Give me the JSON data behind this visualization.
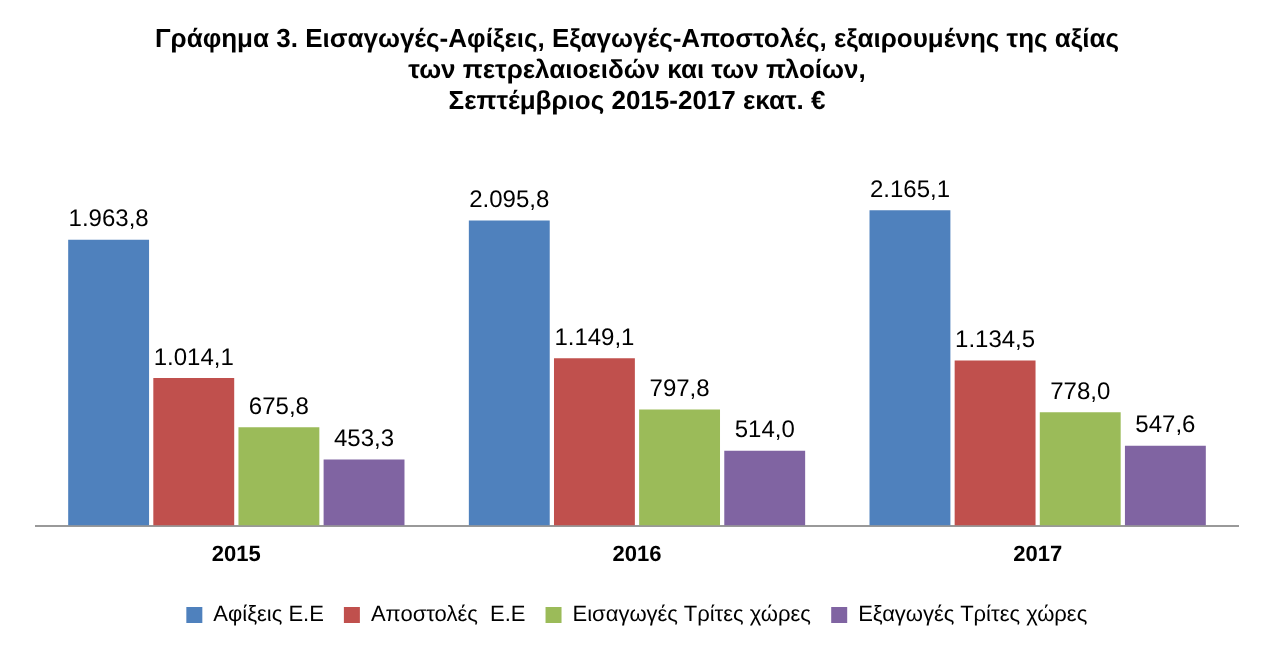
{
  "chart_data": {
    "type": "bar",
    "title": "Γράφημα 3. Εισαγωγές-Αφίξεις, Εξαγωγές-Αποστολές, εξαιρουμένης της αξίας\nτων πετρελαιοειδών και των πλοίων,\nΣεπτέμβριος 2015-2017 εκατ. €",
    "categories": [
      "2015",
      "2016",
      "2017"
    ],
    "series": [
      {
        "name": "Αφίξεις Ε.Ε",
        "color": "#4f81bd",
        "values": [
          1963.8,
          2095.8,
          2165.1
        ],
        "value_labels": [
          "1.963,8",
          "2.095,8",
          "2.165,1"
        ]
      },
      {
        "name": "Αποστολές  Ε.Ε",
        "color": "#c0504d",
        "values": [
          1014.1,
          1149.1,
          1134.5
        ],
        "value_labels": [
          "1.014,1",
          "1.149,1",
          "1.134,5"
        ]
      },
      {
        "name": "Εισαγωγές Τρίτες χώρες",
        "color": "#9bbb59",
        "values": [
          675.8,
          797.8,
          778.0
        ],
        "value_labels": [
          "675,8",
          "797,8",
          "778,0"
        ]
      },
      {
        "name": "Εξαγωγές Τρίτες χώρες",
        "color": "#8064a2",
        "values": [
          453.3,
          514.0,
          547.6
        ],
        "value_labels": [
          "453,3",
          "514,0",
          "547,6"
        ]
      }
    ],
    "legend": "bottom",
    "grid": false
  }
}
